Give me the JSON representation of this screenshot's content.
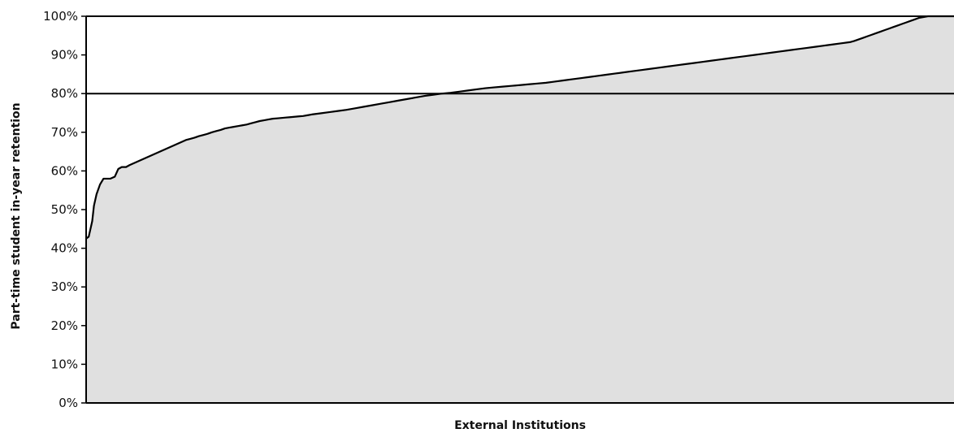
{
  "chart_data": {
    "type": "area",
    "title": "",
    "xlabel": "External Institutions",
    "ylabel": "Part-time student  in-year retention",
    "ylim": [
      0,
      100
    ],
    "yticks": [
      "0%",
      "10%",
      "20%",
      "30%",
      "40%",
      "50%",
      "60%",
      "70%",
      "80%",
      "90%",
      "100%"
    ],
    "x_range": [
      0,
      100
    ],
    "reference_line": 80,
    "fill_color": "#e0e0e0",
    "line_color": "#000000",
    "grid": false,
    "series": [
      {
        "x": [
          0,
          0.3,
          0.7,
          0.9,
          1.2,
          1.6,
          2.0,
          2.3,
          2.8,
          3.3,
          3.7,
          4.1,
          4.6,
          5.0,
          5.5,
          6.0,
          6.5,
          7.0,
          7.5,
          8.0,
          8.5,
          9.0,
          9.5,
          10.0,
          10.5,
          11.0,
          11.5,
          12.0,
          12.5,
          13.0,
          13.5,
          14.0,
          14.5,
          15.0,
          15.5,
          16.0,
          16.5,
          17.0,
          17.5,
          18.0,
          18.5,
          19.0,
          19.5,
          20.0,
          20.5,
          21.0,
          21.5,
          22.0,
          22.5,
          23.0,
          23.5,
          24.0,
          24.5,
          25.0,
          25.5,
          26.0,
          27.0,
          28.0,
          29.0,
          30.0,
          31.0,
          32.0,
          33.0,
          34.0,
          35.0,
          36.0,
          37.0,
          38.0,
          39.0,
          40.0,
          41.0,
          42.0,
          43.0,
          44.0,
          45.0,
          46.0,
          47.0,
          48.0,
          49.0,
          50.0,
          51.0,
          52.0,
          53.0,
          54.0,
          55.0,
          56.0,
          57.0,
          58.0,
          59.0,
          60.0,
          61.0,
          62.0,
          63.0,
          64.0,
          65.0,
          66.0,
          67.0,
          68.0,
          69.0,
          70.0,
          71.0,
          72.0,
          73.0,
          74.0,
          75.0,
          76.0,
          77.0,
          78.0,
          79.0,
          80.0,
          81.0,
          82.0,
          83.0,
          84.0,
          85.0,
          86.0,
          87.0,
          88.0,
          88.5,
          89.0,
          89.5,
          90.0,
          90.5,
          91.0,
          91.5,
          92.0,
          92.5,
          93.0,
          93.5,
          94.0,
          94.5,
          95.0,
          95.5,
          96.0,
          97.0,
          98.0,
          99.0,
          100.0
        ],
        "values": [
          42.5,
          43.0,
          47.0,
          51.0,
          54.0,
          56.5,
          58.0,
          58.0,
          58.0,
          58.5,
          60.5,
          61.0,
          61.0,
          61.5,
          62.0,
          62.5,
          63.0,
          63.5,
          64.0,
          64.5,
          65.0,
          65.5,
          66.0,
          66.5,
          67.0,
          67.5,
          68.0,
          68.3,
          68.6,
          69.0,
          69.3,
          69.6,
          70.0,
          70.3,
          70.6,
          71.0,
          71.2,
          71.4,
          71.6,
          71.8,
          72.0,
          72.3,
          72.6,
          72.9,
          73.1,
          73.3,
          73.5,
          73.6,
          73.7,
          73.8,
          73.9,
          74.0,
          74.1,
          74.2,
          74.4,
          74.6,
          74.9,
          75.2,
          75.5,
          75.8,
          76.2,
          76.6,
          77.0,
          77.4,
          77.8,
          78.2,
          78.6,
          79.0,
          79.4,
          79.7,
          80.0,
          80.2,
          80.5,
          80.8,
          81.1,
          81.4,
          81.6,
          81.8,
          82.0,
          82.2,
          82.4,
          82.6,
          82.8,
          83.1,
          83.4,
          83.7,
          84.0,
          84.3,
          84.6,
          84.9,
          85.2,
          85.5,
          85.8,
          86.1,
          86.4,
          86.7,
          87.0,
          87.3,
          87.6,
          87.9,
          88.2,
          88.5,
          88.8,
          89.1,
          89.4,
          89.7,
          90.0,
          90.3,
          90.6,
          90.9,
          91.2,
          91.5,
          91.8,
          92.1,
          92.4,
          92.7,
          93.0,
          93.3,
          93.6,
          94.0,
          94.4,
          94.8,
          95.2,
          95.6,
          96.0,
          96.4,
          96.8,
          97.2,
          97.6,
          98.0,
          98.4,
          98.8,
          99.2,
          99.6,
          100.0,
          100.0,
          100.0,
          100.0
        ]
      }
    ]
  }
}
